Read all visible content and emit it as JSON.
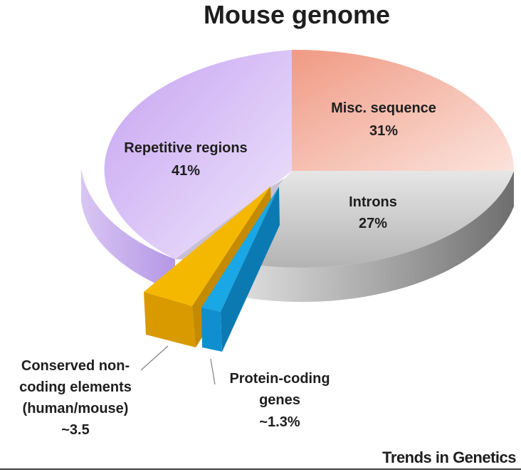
{
  "chart_data": {
    "type": "pie",
    "title": "Mouse genome",
    "slices": [
      {
        "label_lines": [
          "Misc. sequence"
        ],
        "value_label": "31%",
        "value": 31,
        "color": "#f3a895"
      },
      {
        "label_lines": [
          "Introns"
        ],
        "value_label": "27%",
        "value": 27,
        "color": "#c6c6c6"
      },
      {
        "label_lines": [
          "Protein-coding",
          "genes"
        ],
        "value_label": "~1.3%",
        "value": 1.3,
        "color": "#1aa7e6",
        "exploded": true
      },
      {
        "label_lines": [
          "Conserved non-",
          "coding elements",
          "(human/mouse)"
        ],
        "value_label": "~3.5",
        "value": 3.5,
        "color": "#f5b800",
        "exploded": true
      },
      {
        "label_lines": [
          "Repetitive regions"
        ],
        "value_label": "41%",
        "value": 41,
        "color": "#c9aaf2"
      }
    ]
  },
  "source": "Trends in Genetics"
}
